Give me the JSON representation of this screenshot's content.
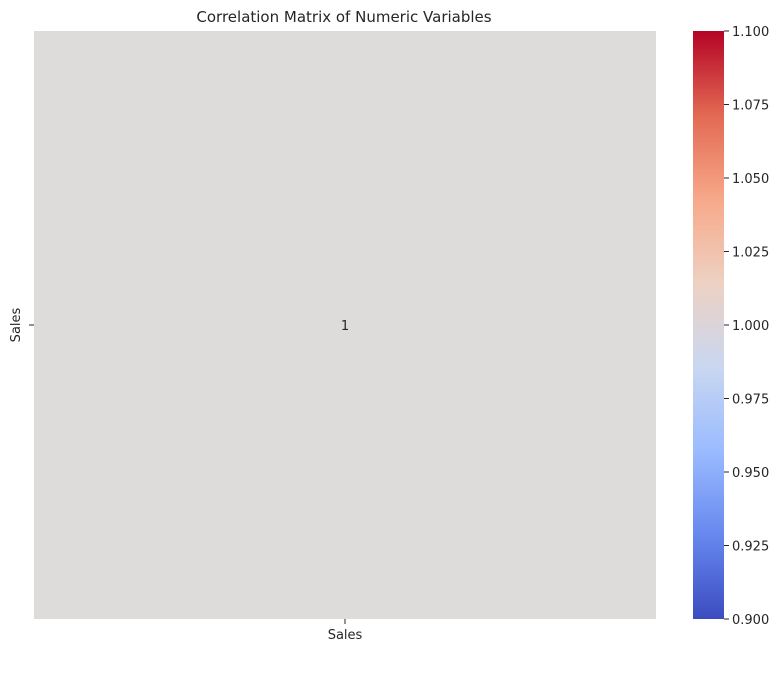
{
  "chart_data": {
    "type": "heatmap",
    "title": "Correlation Matrix of Numeric Variables",
    "xlabel": "",
    "ylabel": "",
    "x_categories": [
      "Sales"
    ],
    "y_categories": [
      "Sales"
    ],
    "values": [
      [
        1
      ]
    ],
    "cell_labels": [
      [
        "1"
      ]
    ],
    "colormap": "coolwarm",
    "cell_color": "#dddcdb",
    "colorbar": {
      "range": [
        0.9,
        1.1
      ],
      "ticks": [
        "0.900",
        "0.925",
        "0.950",
        "0.975",
        "1.000",
        "1.025",
        "1.050",
        "1.075",
        "1.100"
      ],
      "tick_values": [
        0.9,
        0.925,
        0.95,
        0.975,
        1.0,
        1.025,
        1.05,
        1.075,
        1.1
      ],
      "colors": [
        "#3b4cc0",
        "#6788ee",
        "#9abbff",
        "#c9d7f0",
        "#edd1c2",
        "#f7a889",
        "#e26952",
        "#b40426"
      ]
    },
    "grid": false,
    "legend": "colorbar-right"
  }
}
